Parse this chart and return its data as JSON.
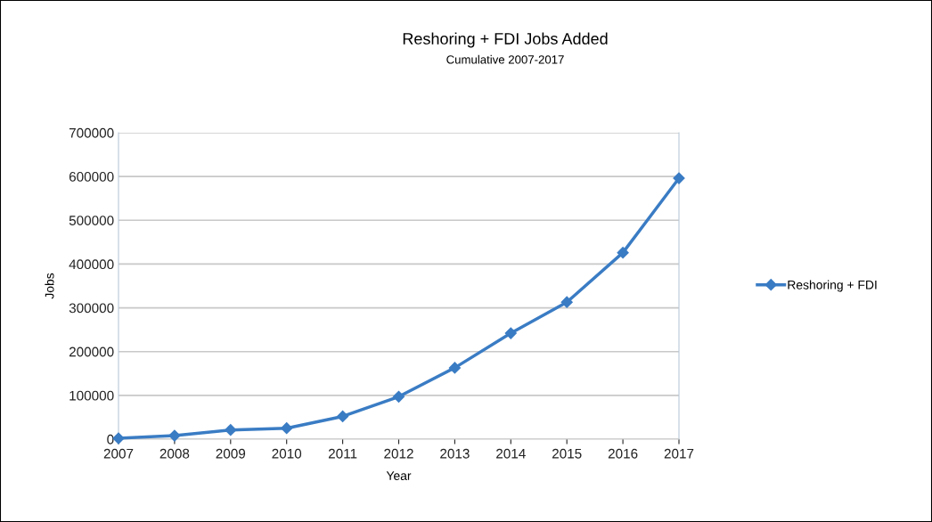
{
  "chart_data": {
    "type": "line",
    "title": "Reshoring + FDI Jobs Added",
    "subtitle": "Cumulative 2007-2017",
    "xlabel": "Year",
    "ylabel": "Jobs",
    "categories": [
      "2007",
      "2008",
      "2009",
      "2010",
      "2011",
      "2012",
      "2013",
      "2014",
      "2015",
      "2016",
      "2017"
    ],
    "series": [
      {
        "name": "Reshoring + FDI",
        "color": "#3a7cc4",
        "values": [
          2000,
          8000,
          21000,
          25000,
          52000,
          97000,
          163000,
          242000,
          313000,
          426000,
          596000
        ]
      }
    ],
    "ylim": [
      0,
      700000
    ],
    "yticks": [
      0,
      100000,
      200000,
      300000,
      400000,
      500000,
      600000,
      700000
    ],
    "grid": "y",
    "legend": "right",
    "marker": "diamond",
    "line_style": "solid"
  }
}
